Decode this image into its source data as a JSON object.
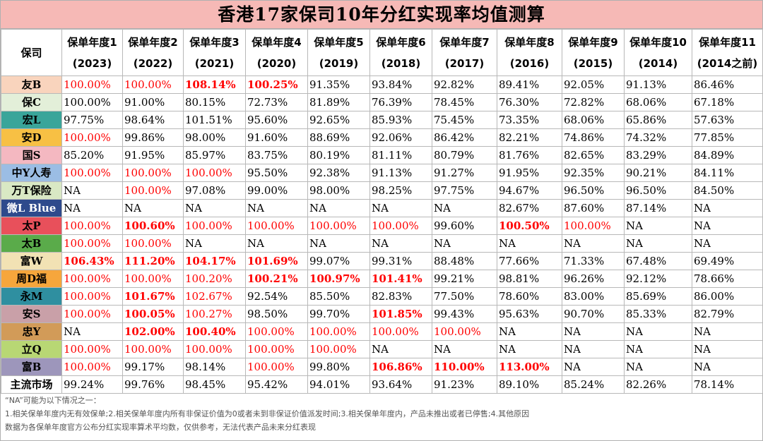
{
  "title": "香港17家保司10年分红实现率均值测算",
  "header": {
    "company": "保司",
    "years": [
      {
        "label": "保单年度1",
        "year": "(2023)"
      },
      {
        "label": "保单年度2",
        "year": "(2022)"
      },
      {
        "label": "保单年度3",
        "year": "(2021)"
      },
      {
        "label": "保单年度4",
        "year": "(2020)"
      },
      {
        "label": "保单年度5",
        "year": "(2019)"
      },
      {
        "label": "保单年度6",
        "year": "(2018)"
      },
      {
        "label": "保单年度7",
        "year": "(2017)"
      },
      {
        "label": "保单年度8",
        "year": "(2016)"
      },
      {
        "label": "保单年度9",
        "year": "(2015)"
      },
      {
        "label": "保单年度10",
        "year": "(2014)"
      },
      {
        "label": "保单年度11",
        "year": "(2014之前)"
      }
    ]
  },
  "colors": {
    "title_bg": "#f6b9b6",
    "red": "#ff0000"
  },
  "rows": [
    {
      "name": "友B",
      "color": "#f9d4bd",
      "cells": [
        [
          "100.00%",
          "r"
        ],
        [
          "100.00%",
          "r"
        ],
        [
          "108.14%",
          "rb"
        ],
        [
          "100.25%",
          "rb"
        ],
        [
          "91.35%",
          "v"
        ],
        [
          "93.84%",
          "v"
        ],
        [
          "92.82%",
          "v"
        ],
        [
          "89.41%",
          "v"
        ],
        [
          "92.05%",
          "v"
        ],
        [
          "91.13%",
          "v"
        ],
        [
          "86.46%",
          "v"
        ]
      ]
    },
    {
      "name": "保C",
      "color": "#e3efd9",
      "cells": [
        [
          "100.00%",
          "v"
        ],
        [
          "91.00%",
          "v"
        ],
        [
          "80.15%",
          "v"
        ],
        [
          "72.73%",
          "v"
        ],
        [
          "81.89%",
          "v"
        ],
        [
          "76.39%",
          "v"
        ],
        [
          "78.45%",
          "v"
        ],
        [
          "76.30%",
          "v"
        ],
        [
          "72.82%",
          "v"
        ],
        [
          "68.06%",
          "v"
        ],
        [
          "67.18%",
          "v"
        ]
      ]
    },
    {
      "name": "宏L",
      "color": "#3aa59a",
      "cells": [
        [
          "97.75%",
          "v"
        ],
        [
          "98.64%",
          "v"
        ],
        [
          "101.51%",
          "v"
        ],
        [
          "95.60%",
          "v"
        ],
        [
          "92.65%",
          "v"
        ],
        [
          "85.93%",
          "v"
        ],
        [
          "75.45%",
          "v"
        ],
        [
          "73.35%",
          "v"
        ],
        [
          "68.06%",
          "v"
        ],
        [
          "65.86%",
          "v"
        ],
        [
          "57.63%",
          "v"
        ]
      ]
    },
    {
      "name": "安D",
      "color": "#f7c044",
      "cells": [
        [
          "100.00%",
          "r"
        ],
        [
          "99.86%",
          "v"
        ],
        [
          "98.00%",
          "v"
        ],
        [
          "91.60%",
          "v"
        ],
        [
          "88.69%",
          "v"
        ],
        [
          "92.06%",
          "v"
        ],
        [
          "86.42%",
          "v"
        ],
        [
          "82.21%",
          "v"
        ],
        [
          "74.86%",
          "v"
        ],
        [
          "74.32%",
          "v"
        ],
        [
          "77.85%",
          "v"
        ]
      ]
    },
    {
      "name": "国S",
      "color": "#f4b8c1",
      "cells": [
        [
          "85.20%",
          "v"
        ],
        [
          "91.95%",
          "v"
        ],
        [
          "85.97%",
          "v"
        ],
        [
          "83.75%",
          "v"
        ],
        [
          "80.19%",
          "v"
        ],
        [
          "81.11%",
          "v"
        ],
        [
          "80.79%",
          "v"
        ],
        [
          "81.76%",
          "v"
        ],
        [
          "82.65%",
          "v"
        ],
        [
          "83.29%",
          "v"
        ],
        [
          "84.89%",
          "v"
        ]
      ]
    },
    {
      "name": "中Y人寿",
      "color": "#9bbde4",
      "cells": [
        [
          "100.00%",
          "r"
        ],
        [
          "100.00%",
          "r"
        ],
        [
          "100.00%",
          "r"
        ],
        [
          "95.50%",
          "v"
        ],
        [
          "92.38%",
          "v"
        ],
        [
          "91.13%",
          "v"
        ],
        [
          "91.27%",
          "v"
        ],
        [
          "91.95%",
          "v"
        ],
        [
          "92.35%",
          "v"
        ],
        [
          "90.21%",
          "v"
        ],
        [
          "84.11%",
          "v"
        ]
      ]
    },
    {
      "name": "万T保险",
      "color": "#d9e8c4",
      "cells": [
        [
          "NA",
          "v"
        ],
        [
          "100.00%",
          "r"
        ],
        [
          "97.08%",
          "v"
        ],
        [
          "99.00%",
          "v"
        ],
        [
          "98.00%",
          "v"
        ],
        [
          "98.25%",
          "v"
        ],
        [
          "97.75%",
          "v"
        ],
        [
          "94.67%",
          "v"
        ],
        [
          "96.50%",
          "v"
        ],
        [
          "96.50%",
          "v"
        ],
        [
          "84.50%",
          "v"
        ]
      ]
    },
    {
      "name": "微L Blue",
      "color": "#2e4a8c",
      "cells": [
        [
          "NA",
          "v"
        ],
        [
          "NA",
          "v"
        ],
        [
          "NA",
          "v"
        ],
        [
          "NA",
          "v"
        ],
        [
          "NA",
          "v"
        ],
        [
          "NA",
          "v"
        ],
        [
          "NA",
          "v"
        ],
        [
          "82.67%",
          "v"
        ],
        [
          "87.60%",
          "v"
        ],
        [
          "87.14%",
          "v"
        ],
        [
          "NA",
          "v"
        ]
      ]
    },
    {
      "name": "太P",
      "color": "#e8505b",
      "cells": [
        [
          "100.00%",
          "r"
        ],
        [
          "100.60%",
          "rb"
        ],
        [
          "100.00%",
          "r"
        ],
        [
          "100.00%",
          "r"
        ],
        [
          "100.00%",
          "r"
        ],
        [
          "100.00%",
          "r"
        ],
        [
          "99.60%",
          "v"
        ],
        [
          "100.50%",
          "rb"
        ],
        [
          "100.00%",
          "r"
        ],
        [
          "NA",
          "v"
        ],
        [
          "NA",
          "v"
        ]
      ]
    },
    {
      "name": "太B",
      "color": "#5aab4a",
      "cells": [
        [
          "100.00%",
          "r"
        ],
        [
          "100.00%",
          "r"
        ],
        [
          "NA",
          "v"
        ],
        [
          "NA",
          "v"
        ],
        [
          "NA",
          "v"
        ],
        [
          "NA",
          "v"
        ],
        [
          "NA",
          "v"
        ],
        [
          "NA",
          "v"
        ],
        [
          "NA",
          "v"
        ],
        [
          "NA",
          "v"
        ],
        [
          "NA",
          "v"
        ]
      ]
    },
    {
      "name": "富W",
      "color": "#f2e2b4",
      "cells": [
        [
          "106.43%",
          "rb"
        ],
        [
          "111.20%",
          "rb"
        ],
        [
          "104.17%",
          "rb"
        ],
        [
          "101.69%",
          "rb"
        ],
        [
          "99.07%",
          "v"
        ],
        [
          "99.31%",
          "v"
        ],
        [
          "88.48%",
          "v"
        ],
        [
          "77.66%",
          "v"
        ],
        [
          "71.33%",
          "v"
        ],
        [
          "67.48%",
          "v"
        ],
        [
          "69.49%",
          "v"
        ]
      ]
    },
    {
      "name": "周D福",
      "color": "#f6a63c",
      "cells": [
        [
          "100.00%",
          "r"
        ],
        [
          "100.00%",
          "r"
        ],
        [
          "100.20%",
          "r"
        ],
        [
          "100.21%",
          "rb"
        ],
        [
          "100.97%",
          "rb"
        ],
        [
          "101.41%",
          "rb"
        ],
        [
          "99.21%",
          "v"
        ],
        [
          "98.81%",
          "v"
        ],
        [
          "96.26%",
          "v"
        ],
        [
          "92.12%",
          "v"
        ],
        [
          "78.66%",
          "v"
        ]
      ]
    },
    {
      "name": "永M",
      "color": "#2f8fa0",
      "cells": [
        [
          "100.00%",
          "r"
        ],
        [
          "101.67%",
          "rb"
        ],
        [
          "102.67%",
          "r"
        ],
        [
          "92.54%",
          "v"
        ],
        [
          "85.50%",
          "v"
        ],
        [
          "82.83%",
          "v"
        ],
        [
          "77.50%",
          "v"
        ],
        [
          "78.60%",
          "v"
        ],
        [
          "83.00%",
          "v"
        ],
        [
          "85.69%",
          "v"
        ],
        [
          "86.00%",
          "v"
        ]
      ]
    },
    {
      "name": "安S",
      "color": "#c9a0a8",
      "cells": [
        [
          "100.00%",
          "r"
        ],
        [
          "100.05%",
          "rb"
        ],
        [
          "100.27%",
          "r"
        ],
        [
          "98.50%",
          "v"
        ],
        [
          "99.70%",
          "v"
        ],
        [
          "101.85%",
          "rb"
        ],
        [
          "99.43%",
          "v"
        ],
        [
          "95.63%",
          "v"
        ],
        [
          "90.70%",
          "v"
        ],
        [
          "85.33%",
          "v"
        ],
        [
          "82.79%",
          "v"
        ]
      ]
    },
    {
      "name": "忠Y",
      "color": "#d29b58",
      "cells": [
        [
          "NA",
          "v"
        ],
        [
          "102.00%",
          "rb"
        ],
        [
          "100.40%",
          "rb"
        ],
        [
          "100.00%",
          "r"
        ],
        [
          "100.00%",
          "r"
        ],
        [
          "100.00%",
          "r"
        ],
        [
          "100.00%",
          "r"
        ],
        [
          "NA",
          "v"
        ],
        [
          "NA",
          "v"
        ],
        [
          "NA",
          "v"
        ],
        [
          "NA",
          "v"
        ]
      ]
    },
    {
      "name": "立Q",
      "color": "#b8d774",
      "cells": [
        [
          "100.00%",
          "r"
        ],
        [
          "100.00%",
          "r"
        ],
        [
          "100.00%",
          "r"
        ],
        [
          "100.00%",
          "r"
        ],
        [
          "100.00%",
          "r"
        ],
        [
          "NA",
          "v"
        ],
        [
          "NA",
          "v"
        ],
        [
          "NA",
          "v"
        ],
        [
          "NA",
          "v"
        ],
        [
          "NA",
          "v"
        ],
        [
          "NA",
          "v"
        ]
      ]
    },
    {
      "name": "富B",
      "color": "#9d96bb",
      "cells": [
        [
          "100.00%",
          "r"
        ],
        [
          "99.17%",
          "v"
        ],
        [
          "98.14%",
          "v"
        ],
        [
          "100.00%",
          "r"
        ],
        [
          "99.80%",
          "v"
        ],
        [
          "106.86%",
          "rb"
        ],
        [
          "110.00%",
          "rb"
        ],
        [
          "113.00%",
          "rb"
        ],
        [
          "NA",
          "v"
        ],
        [
          "NA",
          "v"
        ],
        [
          "NA",
          "v"
        ]
      ]
    },
    {
      "name": "主流市场",
      "color": "#ffffff",
      "cells": [
        [
          "99.24%",
          "v"
        ],
        [
          "99.76%",
          "v"
        ],
        [
          "98.45%",
          "v"
        ],
        [
          "95.42%",
          "v"
        ],
        [
          "94.01%",
          "v"
        ],
        [
          "93.64%",
          "v"
        ],
        [
          "91.23%",
          "v"
        ],
        [
          "89.10%",
          "v"
        ],
        [
          "85.24%",
          "v"
        ],
        [
          "82.26%",
          "v"
        ],
        [
          "78.14%",
          "v"
        ]
      ]
    }
  ],
  "notes": [
    "“NA”可能为以下情况之一：",
    "1.相关保单年度内无有效保单;2.相关保单年度内所有非保证价值为0或者未到非保证价值派发时间;3.相关保单年度内，产品未推出或者已停售;4.其他原因",
    "数据为各保单年度官方公布分红实现率算术平均数，仅供参考，无法代表产品未来分红表现"
  ]
}
